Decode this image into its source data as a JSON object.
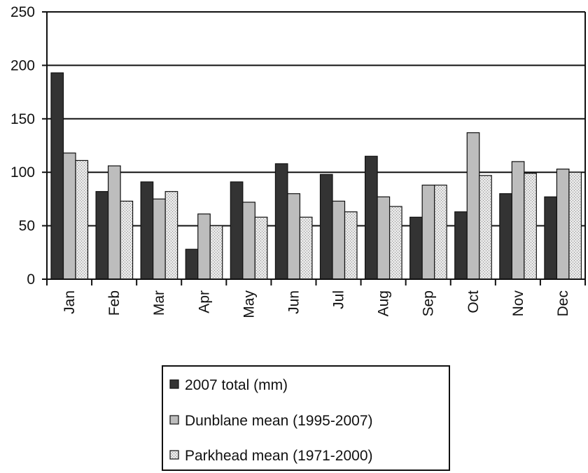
{
  "chart_data": {
    "type": "bar",
    "title": "",
    "xlabel": "",
    "ylabel": "",
    "ylim": [
      0,
      250
    ],
    "yticks": [
      0,
      50,
      100,
      150,
      200,
      250
    ],
    "grid": "horizontal major gridlines",
    "legend_position": "bottom-center",
    "categories": [
      "Jan",
      "Feb",
      "Mar",
      "Apr",
      "May",
      "Jun",
      "Jul",
      "Aug",
      "Sep",
      "Oct",
      "Nov",
      "Dec"
    ],
    "series": [
      {
        "name": "2007 total (mm)",
        "color": "#3a3a3a",
        "pattern": "solid-dark",
        "values": [
          193,
          82,
          91,
          28,
          91,
          108,
          98,
          115,
          58,
          63,
          80,
          77
        ]
      },
      {
        "name": "Dunblane mean (1995-2007)",
        "color": "#bdbdbd",
        "pattern": "solid-light",
        "values": [
          118,
          106,
          75,
          61,
          72,
          80,
          73,
          77,
          88,
          137,
          110,
          103
        ]
      },
      {
        "name": "Parkhead mean (1971-2000)",
        "color": "#dcdcdc",
        "pattern": "dotted-stipple",
        "values": [
          111,
          73,
          82,
          50,
          58,
          58,
          63,
          68,
          88,
          97,
          99,
          100
        ]
      }
    ]
  }
}
